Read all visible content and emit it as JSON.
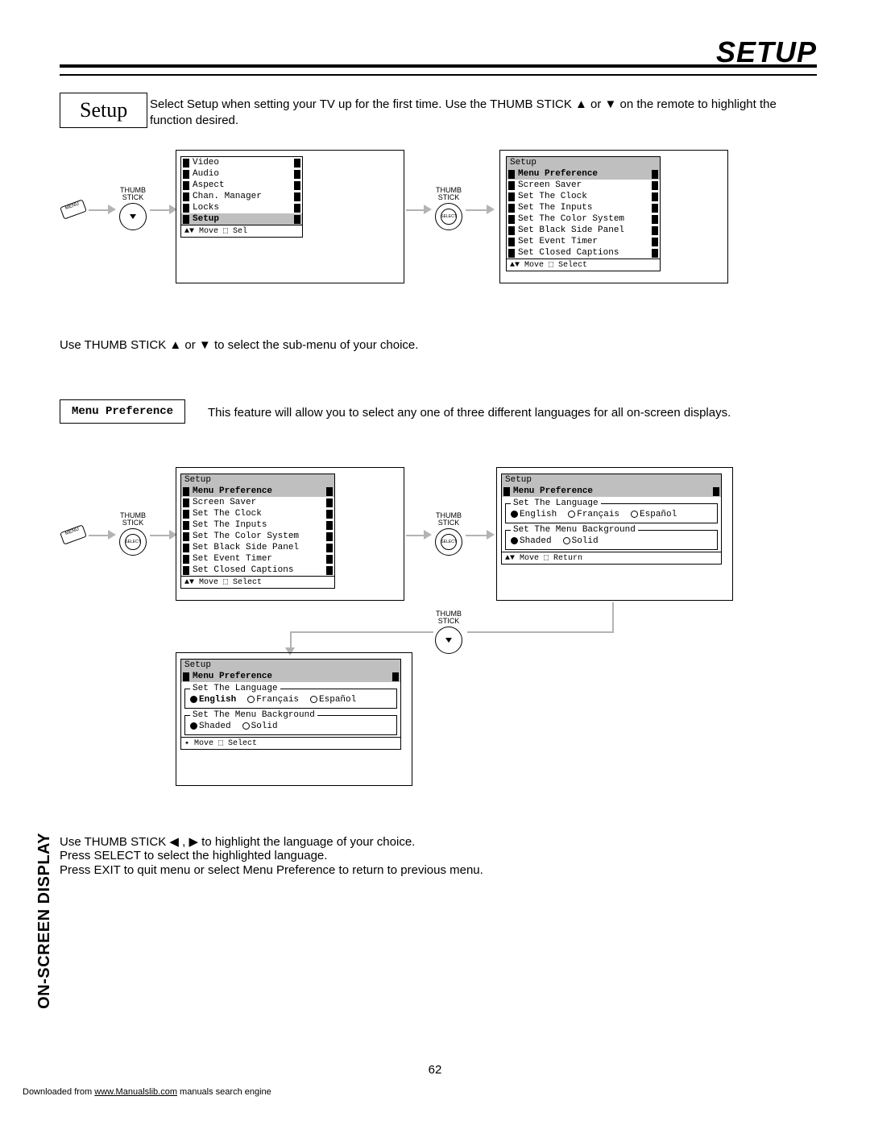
{
  "page": {
    "title": "SETUP",
    "sectionTag": "Setup",
    "intro": "Select Setup when setting your TV up for the first time.  Use the THUMB STICK ▲ or ▼ on the remote to highlight the function desired.",
    "subSelectText": "Use THUMB STICK ▲ or ▼ to select the sub-menu of your choice.",
    "menuPrefTag": "Menu Preference",
    "menuPrefDesc": "This feature will allow you to select any one of three different languages for all on-screen displays.",
    "instructions1": "Use THUMB STICK ◀ , ▶ to highlight the language of your choice.",
    "instructions2": "Press SELECT to select the highlighted language.",
    "instructions3": "Press EXIT to quit menu or select Menu Preference to return to previous menu.",
    "sideLabel": "ON-SCREEN DISPLAY",
    "pageNum": "62",
    "footerPrefix": "Downloaded from ",
    "footerLink": "www.Manualslib.com",
    "footerSuffix": " manuals search engine",
    "thumbStick": "THUMB\nSTICK",
    "selectLabel": "SELECT",
    "menuBtn": "MENU"
  },
  "mainMenu": {
    "items": [
      "Video",
      "Audio",
      "Aspect",
      "Chan. Manager",
      "Locks",
      "Setup"
    ],
    "selected": "Setup",
    "footer": "Move ⬚ Sel"
  },
  "setupMenu": {
    "header": "Setup",
    "items": [
      "Menu Preference",
      "Screen Saver",
      "Set The Clock",
      "Set The Inputs",
      "Set The Color System",
      "Set Black Side Panel",
      "Set Event Timer",
      "Set Closed Captions"
    ],
    "selected": "Menu Preference",
    "footer": "Move ⬚ Select"
  },
  "langMenu": {
    "header": "Setup",
    "subheader": "Menu Preference",
    "langLegend": "Set The Language",
    "langs": [
      "English",
      "Français",
      "Español"
    ],
    "langSel": 0,
    "bgLegend": "Set The Menu Background",
    "bgs": [
      "Shaded",
      "Solid"
    ],
    "bgSel": 0,
    "footerReturn": "Move ⬚ Return",
    "footerSelect": "Move ⬚ Select"
  }
}
